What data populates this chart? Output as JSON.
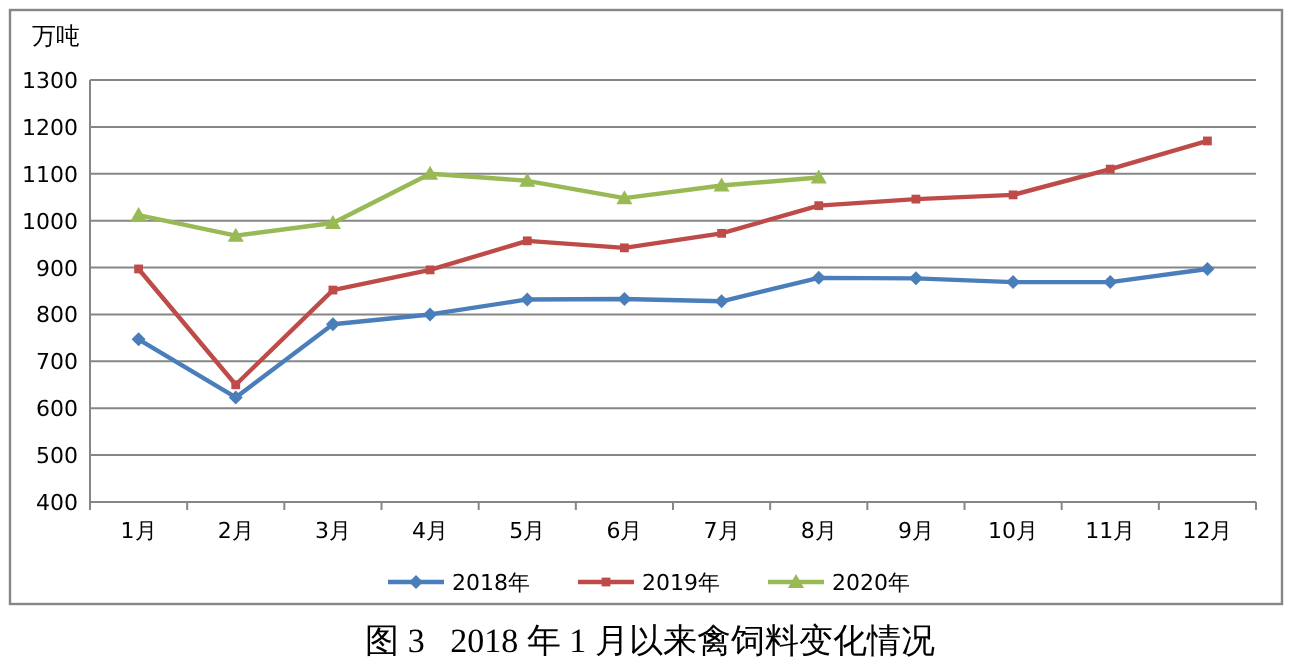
{
  "chart_data": {
    "type": "line",
    "title": "图 3   2018 年 1 月以来禽饲料变化情况",
    "ylabel": "万吨",
    "categories": [
      "1月",
      "2月",
      "3月",
      "4月",
      "5月",
      "6月",
      "7月",
      "8月",
      "9月",
      "10月",
      "11月",
      "12月"
    ],
    "series": [
      {
        "name": "2018年",
        "color": "#4a7ebb",
        "marker": "diamond",
        "values": [
          747,
          623,
          779,
          800,
          832,
          833,
          828,
          878,
          877,
          869,
          869,
          897
        ]
      },
      {
        "name": "2019年",
        "color": "#be4b48",
        "marker": "square",
        "values": [
          897,
          650,
          852,
          895,
          957,
          942,
          973,
          1032,
          1046,
          1055,
          1110,
          1170
        ]
      },
      {
        "name": "2020年",
        "color": "#98b954",
        "marker": "triangle",
        "values": [
          1012,
          968,
          995,
          1100,
          1085,
          1048,
          1075,
          1092,
          null,
          null,
          null,
          null
        ]
      }
    ],
    "ylim": [
      400,
      1300
    ],
    "yticks": [
      400,
      500,
      600,
      700,
      800,
      900,
      1000,
      1100,
      1200,
      1300
    ],
    "grid": "y",
    "legend": "bottom",
    "line_style": "solid"
  }
}
